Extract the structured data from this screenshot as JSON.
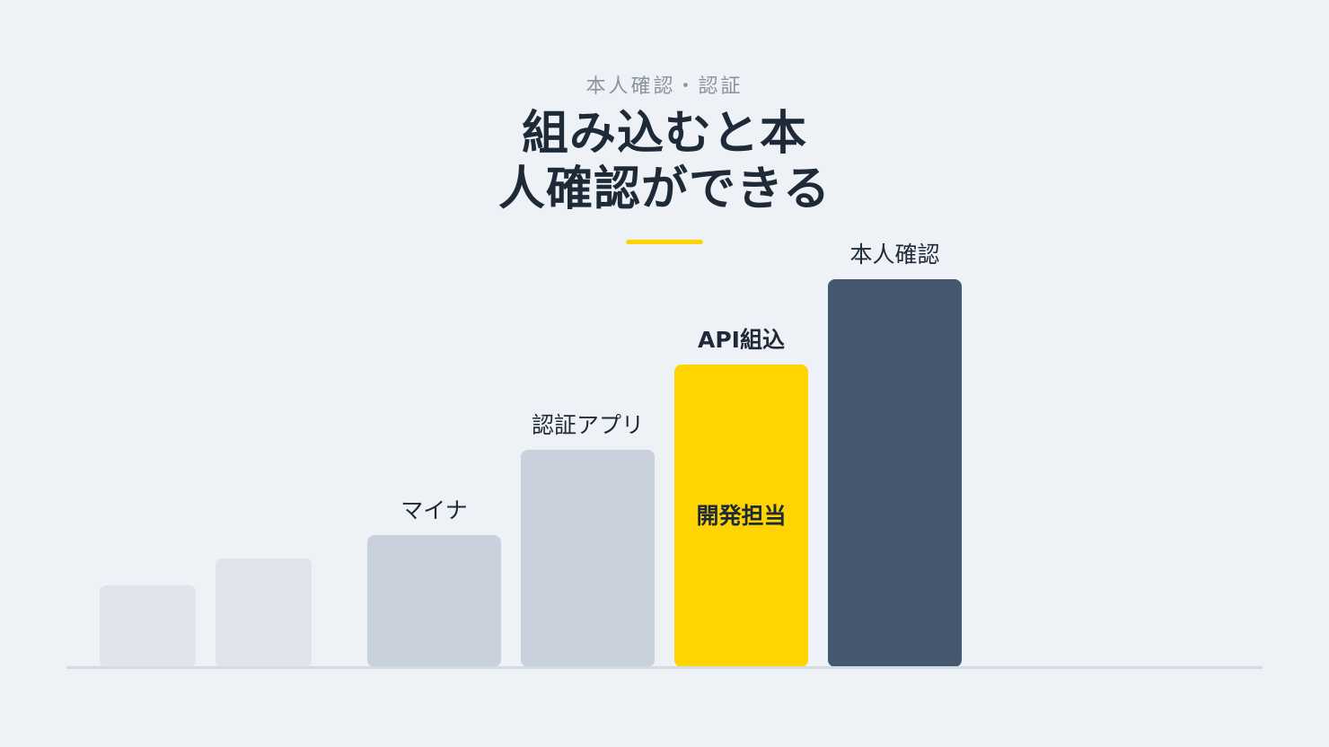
{
  "header": {
    "eyebrow": "本人確認・認証",
    "title_line1": "組み込むと本",
    "title_line2": "人確認ができる"
  },
  "colors": {
    "background": "#eef2f7",
    "accent": "#ffd400",
    "dark": "#465870",
    "light": "#c9d1dc",
    "faint": "#e1e5eb",
    "text": "#1e2a38",
    "muted": "#8a939c"
  },
  "steps": [
    {
      "label": "",
      "inner_label": "",
      "level": 0.21,
      "tone": "faint"
    },
    {
      "label": "",
      "inner_label": "",
      "level": 0.28,
      "tone": "faint"
    },
    {
      "label": "マイナ",
      "inner_label": "",
      "level": 0.34,
      "tone": "light"
    },
    {
      "label": "認証アプリ",
      "inner_label": "",
      "level": 0.56,
      "tone": "light"
    },
    {
      "label": "API組込",
      "inner_label": "開発担当",
      "level": 0.78,
      "tone": "accent",
      "label_bold": true
    },
    {
      "label": "本人確認",
      "inner_label": "",
      "level": 1.0,
      "tone": "dark"
    }
  ]
}
